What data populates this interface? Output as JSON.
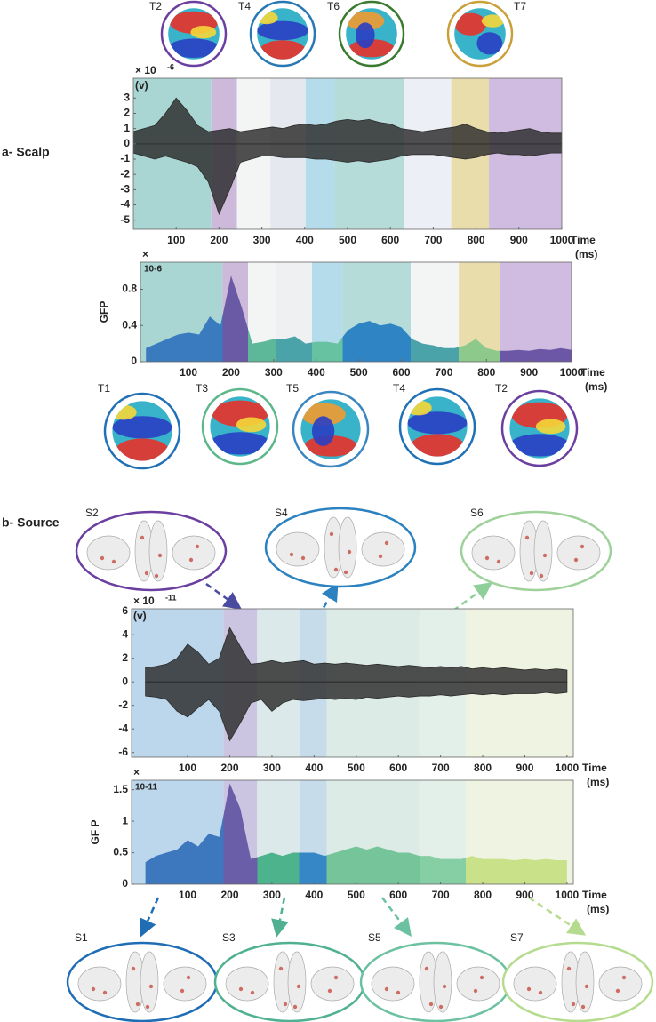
{
  "panel_a_label": "a- Scalp",
  "panel_b_label": "b- Source",
  "scalp_maps_top": [
    "T2",
    "T4",
    "T6",
    "T7"
  ],
  "scalp_maps_bottom": [
    "T1",
    "T3",
    "T5",
    "T4",
    "T2"
  ],
  "source_maps_top": [
    "S2",
    "S4",
    "S6"
  ],
  "source_maps_bottom": [
    "S1",
    "S3",
    "S5",
    "S7"
  ],
  "chart_data": [
    {
      "type": "butterfly",
      "ylabel": "(v)",
      "multiplier": "× 10",
      "multiplier_exp": "-6",
      "xlabel": "Time",
      "xlabel_unit": "(ms)",
      "xlim": [
        0,
        1000
      ],
      "xticks": [
        100,
        200,
        300,
        400,
        500,
        600,
        700,
        800,
        900,
        1000
      ],
      "ylim": [
        -5.6,
        4.3
      ],
      "yticks": [
        3,
        2,
        1,
        0,
        -1,
        -2,
        -3,
        -4,
        -5
      ],
      "x": [
        0,
        25,
        50,
        75,
        100,
        125,
        150,
        175,
        200,
        225,
        250,
        275,
        300,
        325,
        350,
        375,
        400,
        425,
        450,
        475,
        500,
        525,
        550,
        575,
        600,
        625,
        650,
        675,
        700,
        725,
        750,
        775,
        800,
        825,
        850,
        875,
        900,
        925,
        950,
        975,
        1000
      ],
      "series": [
        {
          "color": "#2b2b2b",
          "values": [
            0.8,
            1.0,
            1.2,
            2.0,
            3.0,
            2.2,
            1.2,
            0.8,
            0.9,
            1.0,
            0.8,
            0.9,
            1.0,
            1.1,
            1.0,
            1.2,
            1.3,
            1.2,
            1.3,
            1.5,
            1.6,
            1.5,
            1.6,
            1.4,
            1.3,
            1.0,
            0.9,
            0.8,
            0.9,
            1.0,
            1.1,
            1.3,
            1.0,
            0.8,
            0.7,
            0.8,
            0.9,
            1.0,
            0.8,
            0.7,
            0.7
          ]
        },
        {
          "color": "#2b2b2b",
          "values": [
            -0.6,
            -0.8,
            -1.0,
            -0.8,
            -1.0,
            -1.2,
            -1.5,
            -2.5,
            -4.6,
            -3.0,
            -1.2,
            -1.0,
            -0.8,
            -0.8,
            -0.9,
            -0.9,
            -0.9,
            -1.0,
            -1.0,
            -1.1,
            -1.2,
            -1.1,
            -1.2,
            -1.1,
            -1.0,
            -0.8,
            -0.7,
            -0.7,
            -0.7,
            -0.8,
            -0.9,
            -1.0,
            -0.9,
            -0.7,
            -0.6,
            -0.7,
            -0.7,
            -0.8,
            -0.7,
            -0.6,
            -0.6
          ]
        }
      ],
      "segments": [
        {
          "start": 0,
          "end": 182,
          "color": "#a9d6d2"
        },
        {
          "start": 182,
          "end": 242,
          "color": "#cdb9da"
        },
        {
          "start": 242,
          "end": 320,
          "color": "#f3f5f5"
        },
        {
          "start": 320,
          "end": 402,
          "color": "#e5e8ef"
        },
        {
          "start": 402,
          "end": 470,
          "color": "#b5dcea"
        },
        {
          "start": 470,
          "end": 632,
          "color": "#b6dcd9"
        },
        {
          "start": 632,
          "end": 742,
          "color": "#eceff6"
        },
        {
          "start": 742,
          "end": 830,
          "color": "#e9ddab"
        },
        {
          "start": 830,
          "end": 1000,
          "color": "#d0bce0"
        }
      ]
    },
    {
      "type": "gfp",
      "ylabel": "GFP",
      "multiplier": "×",
      "multiplier_exp": "10-6",
      "xlabel": "Time",
      "xlabel_unit": "(ms)",
      "xlim": [
        -13,
        1000
      ],
      "xticks": [
        100,
        200,
        300,
        400,
        500,
        600,
        700,
        800,
        900,
        1000
      ],
      "ylim": [
        0,
        1.1
      ],
      "yticks": [
        0,
        0.4,
        0.8
      ],
      "x": [
        0,
        25,
        50,
        75,
        100,
        125,
        150,
        175,
        200,
        225,
        250,
        275,
        300,
        325,
        350,
        375,
        400,
        425,
        450,
        475,
        500,
        525,
        550,
        575,
        600,
        625,
        650,
        675,
        700,
        725,
        750,
        775,
        800,
        825,
        850,
        875,
        900,
        925,
        950,
        975,
        1000
      ],
      "values": [
        0.15,
        0.2,
        0.25,
        0.3,
        0.32,
        0.3,
        0.5,
        0.4,
        0.95,
        0.6,
        0.2,
        0.22,
        0.25,
        0.25,
        0.28,
        0.2,
        0.22,
        0.22,
        0.2,
        0.35,
        0.42,
        0.45,
        0.4,
        0.42,
        0.38,
        0.25,
        0.2,
        0.18,
        0.15,
        0.15,
        0.18,
        0.25,
        0.15,
        0.12,
        0.12,
        0.13,
        0.12,
        0.14,
        0.13,
        0.15,
        0.13
      ],
      "segments": [
        {
          "start": -13,
          "end": 180,
          "color": "#a9d6d2",
          "fill": "#3a7bbf"
        },
        {
          "start": 180,
          "end": 240,
          "color": "#cdb9da",
          "fill": "#6a5aa6"
        },
        {
          "start": 240,
          "end": 305,
          "color": "#f3f5f5",
          "fill": "#5db89a"
        },
        {
          "start": 305,
          "end": 390,
          "color": "#eef0f2",
          "fill": "#4aa3a8"
        },
        {
          "start": 390,
          "end": 462,
          "color": "#b5dcea",
          "fill": "#66c2a0"
        },
        {
          "start": 462,
          "end": 622,
          "color": "#b6dcd9",
          "fill": "#2f85c4"
        },
        {
          "start": 622,
          "end": 735,
          "color": "#f3f5f5",
          "fill": "#4aa3a8"
        },
        {
          "start": 735,
          "end": 832,
          "color": "#e9ddab",
          "fill": "#8cc98a"
        },
        {
          "start": 832,
          "end": 1000,
          "color": "#d0bce0",
          "fill": "#6c56a6"
        }
      ]
    },
    {
      "type": "butterfly",
      "ylabel": "(v)",
      "multiplier": "× 10",
      "multiplier_exp": "-11",
      "xlabel": "Time",
      "xlabel_unit": "(ms)",
      "xlim": [
        -33,
        1015
      ],
      "xticks": [
        100,
        200,
        300,
        400,
        500,
        600,
        700,
        800,
        900,
        1000
      ],
      "ylim": [
        -6.4,
        6.2
      ],
      "yticks": [
        6,
        4,
        2,
        0,
        -2,
        -4,
        -6
      ],
      "x": [
        0,
        25,
        50,
        75,
        100,
        125,
        150,
        175,
        200,
        225,
        250,
        275,
        300,
        325,
        350,
        375,
        400,
        425,
        450,
        475,
        500,
        525,
        550,
        575,
        600,
        625,
        650,
        675,
        700,
        725,
        750,
        775,
        800,
        825,
        850,
        875,
        900,
        925,
        950,
        975,
        1000
      ],
      "series": [
        {
          "color": "#2b2b2b",
          "values": [
            1.2,
            1.3,
            1.5,
            2.0,
            3.2,
            2.5,
            1.5,
            2.0,
            4.6,
            3.0,
            1.5,
            1.6,
            1.8,
            1.6,
            1.7,
            1.8,
            1.5,
            1.6,
            1.5,
            1.6,
            1.5,
            1.4,
            1.5,
            1.4,
            1.3,
            1.4,
            1.3,
            1.2,
            1.3,
            1.2,
            1.3,
            1.1,
            1.2,
            1.1,
            1.2,
            1.1,
            1.0,
            1.1,
            1.0,
            1.1,
            1.0
          ]
        },
        {
          "color": "#2b2b2b",
          "values": [
            -1.2,
            -1.3,
            -1.5,
            -2.5,
            -3.0,
            -2.2,
            -1.5,
            -2.5,
            -5.0,
            -3.5,
            -1.8,
            -1.5,
            -2.5,
            -1.8,
            -1.5,
            -1.6,
            -1.5,
            -1.4,
            -1.5,
            -1.4,
            -1.5,
            -1.3,
            -1.4,
            -1.3,
            -1.2,
            -1.3,
            -1.2,
            -1.2,
            -1.1,
            -1.2,
            -1.1,
            -1.0,
            -1.1,
            -1.0,
            -1.1,
            -1.0,
            -1.0,
            -1.0,
            -0.9,
            -1.0,
            -0.9
          ]
        }
      ],
      "segments": [
        {
          "start": -33,
          "end": 185,
          "color": "#bcd6ec"
        },
        {
          "start": 185,
          "end": 265,
          "color": "#cbc5e2"
        },
        {
          "start": 265,
          "end": 365,
          "color": "#dbe9ea"
        },
        {
          "start": 365,
          "end": 430,
          "color": "#c6dcea"
        },
        {
          "start": 430,
          "end": 650,
          "color": "#dcebe6"
        },
        {
          "start": 650,
          "end": 760,
          "color": "#e3efe9"
        },
        {
          "start": 760,
          "end": 1015,
          "color": "#eff3e1"
        }
      ]
    },
    {
      "type": "gfp",
      "ylabel": "GF P",
      "multiplier": "×",
      "multiplier_exp": "10-11",
      "xlabel": "Time",
      "xlabel_unit": "(ms)",
      "xlim": [
        -33,
        1015
      ],
      "xticks": [
        100,
        200,
        300,
        400,
        500,
        600,
        700,
        800,
        900,
        1000
      ],
      "ylim": [
        0,
        1.65
      ],
      "yticks": [
        0,
        0.5,
        1,
        1.5
      ],
      "x": [
        0,
        25,
        50,
        75,
        100,
        125,
        150,
        175,
        200,
        225,
        250,
        275,
        300,
        325,
        350,
        375,
        400,
        425,
        450,
        475,
        500,
        525,
        550,
        575,
        600,
        625,
        650,
        675,
        700,
        725,
        750,
        775,
        800,
        825,
        850,
        875,
        900,
        925,
        950,
        975,
        1000
      ],
      "values": [
        0.35,
        0.45,
        0.5,
        0.55,
        0.7,
        0.6,
        0.8,
        0.75,
        1.6,
        1.2,
        0.4,
        0.45,
        0.5,
        0.45,
        0.5,
        0.5,
        0.5,
        0.45,
        0.5,
        0.55,
        0.6,
        0.55,
        0.6,
        0.55,
        0.5,
        0.5,
        0.45,
        0.45,
        0.4,
        0.4,
        0.4,
        0.45,
        0.4,
        0.4,
        0.4,
        0.38,
        0.4,
        0.38,
        0.4,
        0.38,
        0.38
      ],
      "segments": [
        {
          "start": -33,
          "end": 185,
          "color": "#bcd6ec",
          "fill": "#3d77bd"
        },
        {
          "start": 185,
          "end": 265,
          "color": "#cbc5e2",
          "fill": "#6b5ea8"
        },
        {
          "start": 265,
          "end": 365,
          "color": "#dbe9ea",
          "fill": "#4db38c"
        },
        {
          "start": 365,
          "end": 430,
          "color": "#c6dcea",
          "fill": "#3588c5"
        },
        {
          "start": 430,
          "end": 650,
          "color": "#dcebe6",
          "fill": "#76c59a"
        },
        {
          "start": 650,
          "end": 760,
          "color": "#e3efe9",
          "fill": "#86cfa5"
        },
        {
          "start": 760,
          "end": 1015,
          "color": "#eff3e1",
          "fill": "#c9e28a"
        }
      ]
    }
  ]
}
